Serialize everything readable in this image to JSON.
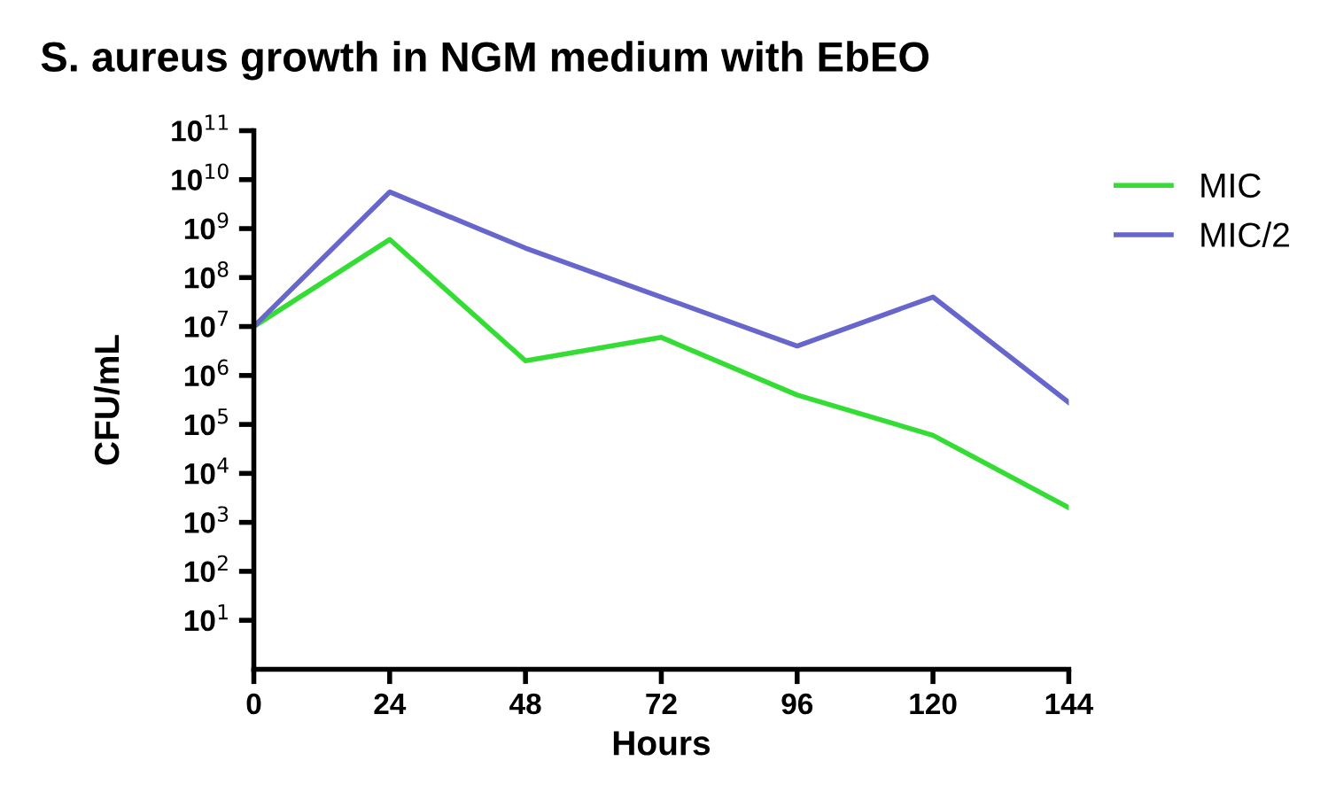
{
  "chart_data": {
    "type": "line",
    "title": "S. aureus growth in NGM medium with EbEO",
    "xlabel": "Hours",
    "ylabel": "CFU/mL",
    "x": [
      0,
      24,
      48,
      72,
      96,
      120,
      144
    ],
    "series": [
      {
        "name": "MIC",
        "color": "#33dd33",
        "values": [
          10000000.0,
          600000000.0,
          2000000.0,
          6000000.0,
          400000.0,
          60000.0,
          2000.0
        ]
      },
      {
        "name": "MIC/2",
        "color": "#6666cc",
        "values": [
          10000000.0,
          5600000000.0,
          400000000.0,
          40000000.0,
          4000000.0,
          40000000.0,
          280000.0
        ]
      }
    ],
    "log": "y",
    "xlim": [
      0,
      144
    ],
    "xticks": [
      0,
      24,
      48,
      72,
      96,
      120,
      144
    ],
    "ylim": [
      1,
      100000000000.0
    ],
    "yticks": [
      {
        "value": 10,
        "label": "10$^{1}$"
      },
      {
        "value": 100,
        "label": "10$^{2}$"
      },
      {
        "value": 1000,
        "label": "10$^{3}$"
      },
      {
        "value": 10000,
        "label": "10$^{4}$"
      },
      {
        "value": 100000,
        "label": "10$^{5}$"
      },
      {
        "value": 1000000,
        "label": "10$^{6}$"
      },
      {
        "value": 10000000,
        "label": "10$^{7}$"
      },
      {
        "value": 100000000,
        "label": "10$^{8}$"
      },
      {
        "value": 1000000000,
        "label": "10$^{9}$"
      },
      {
        "value": 10000000000,
        "label": "10$^{10}$"
      },
      {
        "value": 100000000000,
        "label": "10$^{11}$"
      }
    ],
    "grid": false,
    "legend": "right",
    "marker": "none",
    "line_style": "solid"
  }
}
